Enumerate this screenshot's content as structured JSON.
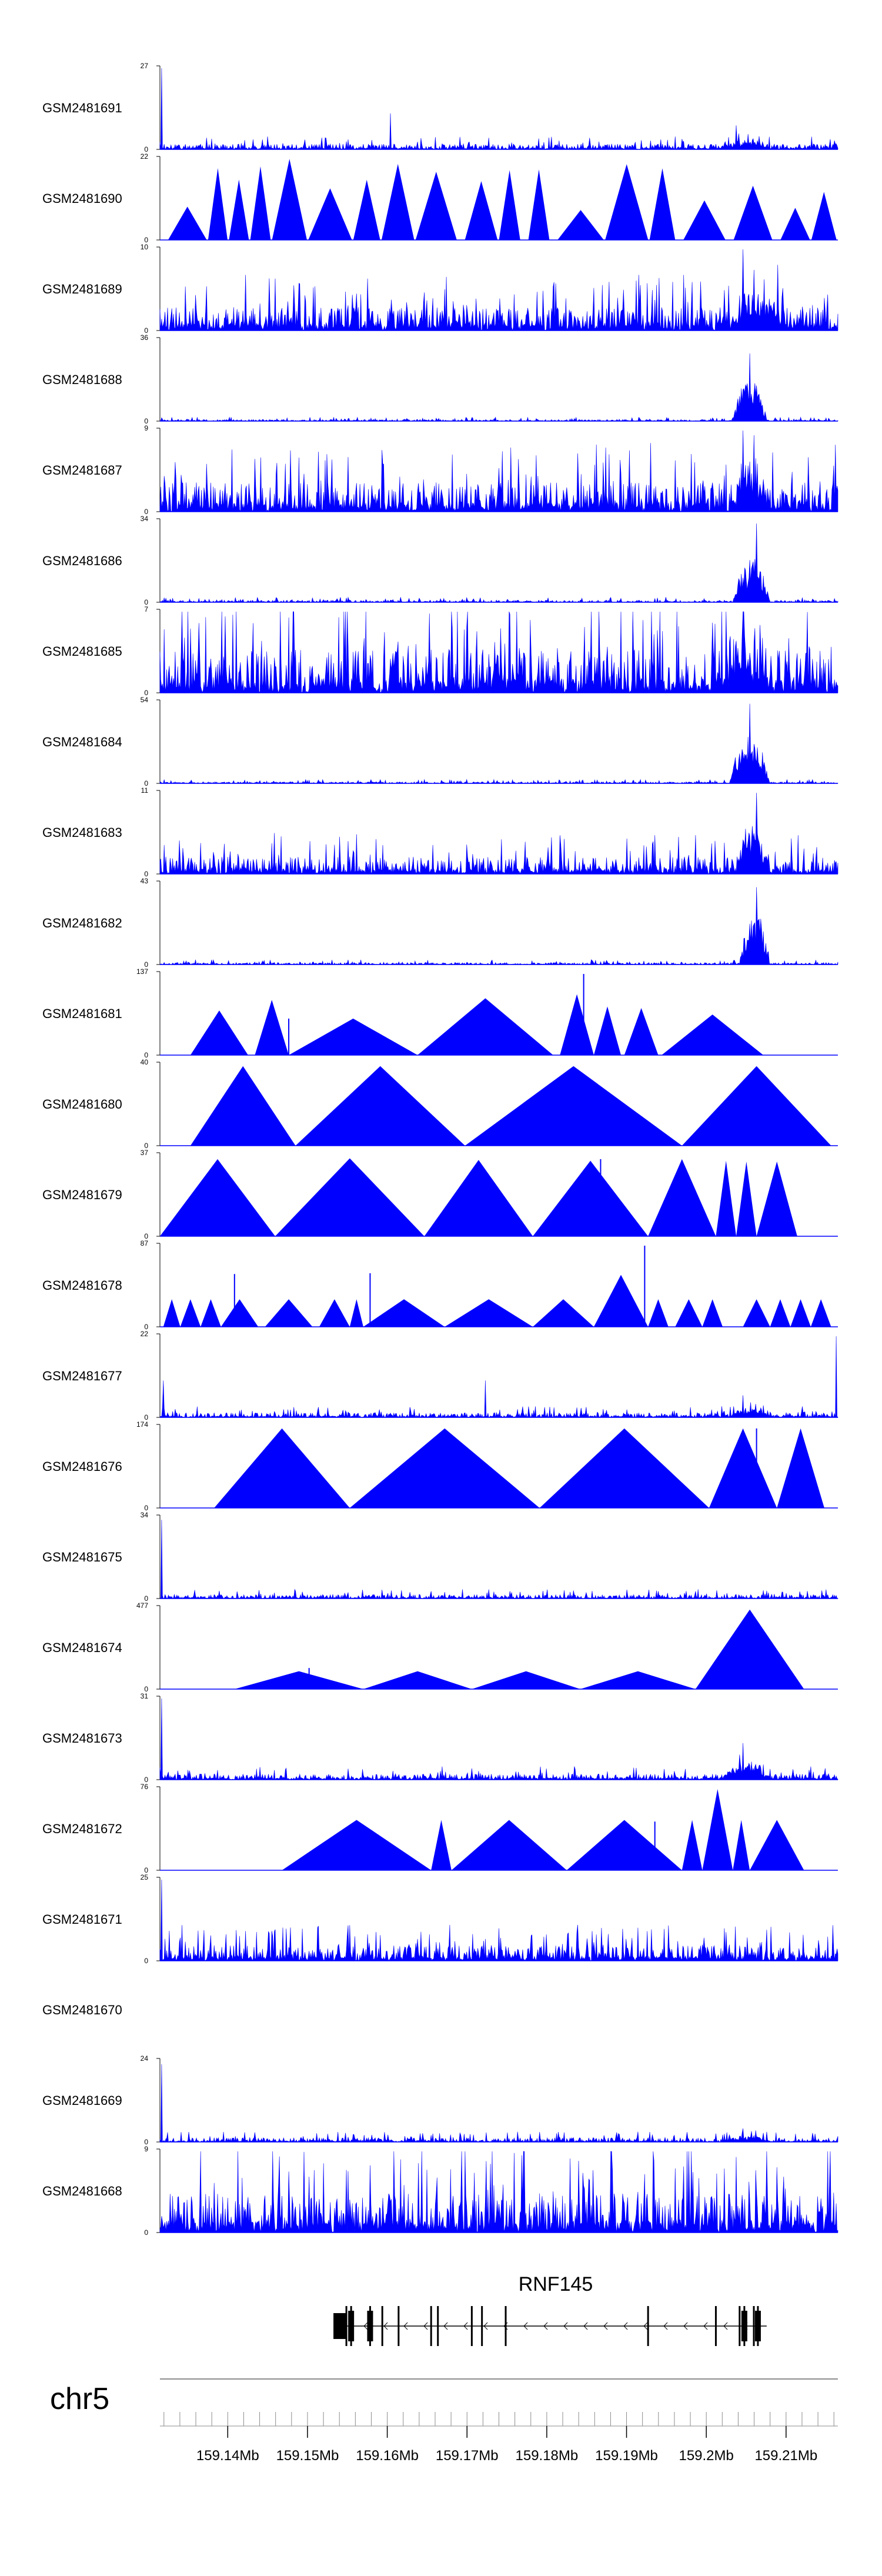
{
  "chart_data": {
    "type": "area",
    "fill_color": "#0000ff",
    "axis_color": "#000000",
    "tracks": [
      {
        "label": "GSM2481691",
        "ymax": "27",
        "ymin": "0",
        "style": "dense",
        "baseline": 1.0,
        "seed": 11,
        "peaks": [
          [
            0.003,
            27
          ],
          [
            0.34,
            12
          ],
          [
            0.85,
            8
          ]
        ],
        "hotspot": [
          0.82,
          0.9,
          1.4
        ]
      },
      {
        "label": "GSM2481690",
        "ymax": "22",
        "ymin": "0",
        "style": "triangles",
        "seed": 12,
        "density": 0.55,
        "max": 22
      },
      {
        "label": "GSM2481689",
        "ymax": "10",
        "ymin": "0",
        "style": "dense",
        "baseline": 1.6,
        "seed": 13,
        "peaks": [
          [
            0.86,
            10
          ]
        ],
        "hotspot": [
          0.84,
          0.92,
          2.4
        ]
      },
      {
        "label": "GSM2481688",
        "ymax": "36",
        "ymin": "0",
        "style": "dense",
        "baseline": 0.4,
        "seed": 14,
        "peaks": [
          [
            0.87,
            30
          ]
        ],
        "hotspot": [
          0.845,
          0.895,
          14
        ]
      },
      {
        "label": "GSM2481687",
        "ymax": "9",
        "ymin": "0",
        "style": "dense",
        "baseline": 1.8,
        "seed": 15,
        "peaks": [
          [
            0.86,
            9
          ]
        ],
        "hotspot": [
          0.84,
          0.9,
          2.6
        ]
      },
      {
        "label": "GSM2481686",
        "ymax": "34",
        "ymin": "0",
        "style": "dense",
        "baseline": 0.5,
        "seed": 16,
        "peaks": [
          [
            0.88,
            33
          ]
        ],
        "hotspot": [
          0.845,
          0.9,
          13
        ]
      },
      {
        "label": "GSM2481685",
        "ymax": "7",
        "ymin": "0",
        "style": "dense",
        "baseline": 2.1,
        "seed": 17,
        "peaks": [
          [
            0.86,
            7
          ]
        ],
        "hotspot": [
          0.82,
          0.9,
          1.6
        ]
      },
      {
        "label": "GSM2481684",
        "ymax": "54",
        "ymin": "0",
        "style": "dense",
        "baseline": 0.6,
        "seed": 18,
        "peaks": [
          [
            0.87,
            53
          ]
        ],
        "hotspot": [
          0.84,
          0.9,
          24
        ]
      },
      {
        "label": "GSM2481683",
        "ymax": "11",
        "ymin": "0",
        "style": "dense",
        "baseline": 1.3,
        "seed": 19,
        "peaks": [
          [
            0.88,
            11
          ]
        ],
        "hotspot": [
          0.85,
          0.9,
          3.8
        ]
      },
      {
        "label": "GSM2481682",
        "ymax": "43",
        "ymin": "0",
        "style": "dense",
        "baseline": 0.6,
        "seed": 20,
        "peaks": [
          [
            0.88,
            41
          ]
        ],
        "hotspot": [
          0.855,
          0.9,
          20
        ]
      },
      {
        "label": "GSM2481681",
        "ymax": "137",
        "ymin": "0",
        "style": "tri_list",
        "tris": [
          [
            0.045,
            0.13,
            0.55
          ],
          [
            0.14,
            0.19,
            0.68
          ],
          [
            0.19,
            0.38,
            0.45
          ],
          [
            0.38,
            0.58,
            0.7
          ],
          [
            0.59,
            0.64,
            0.75
          ],
          [
            0.64,
            0.68,
            0.6
          ],
          [
            0.685,
            0.735,
            0.58
          ],
          [
            0.74,
            0.89,
            0.5
          ]
        ],
        "spikes": [
          [
            0.625,
            1.0
          ],
          [
            0.19,
            0.45
          ]
        ]
      },
      {
        "label": "GSM2481680",
        "ymax": "40",
        "ymin": "0",
        "style": "tri_list",
        "tris": [
          [
            0.045,
            0.2,
            0.98
          ],
          [
            0.2,
            0.45,
            0.98
          ],
          [
            0.45,
            0.77,
            0.98
          ],
          [
            0.77,
            0.99,
            0.98
          ]
        ],
        "spikes": []
      },
      {
        "label": "GSM2481679",
        "ymax": "37",
        "ymin": "0",
        "style": "tri_list",
        "tris": [
          [
            0.0,
            0.17,
            0.95
          ],
          [
            0.17,
            0.39,
            0.96
          ],
          [
            0.39,
            0.55,
            0.94
          ],
          [
            0.55,
            0.72,
            0.93
          ],
          [
            0.72,
            0.82,
            0.95
          ],
          [
            0.82,
            0.85,
            0.93
          ],
          [
            0.85,
            0.88,
            0.92
          ],
          [
            0.88,
            0.94,
            0.92
          ]
        ],
        "spikes": [
          [
            0.65,
            0.95
          ]
        ]
      },
      {
        "label": "GSM2481678",
        "ymax": "87",
        "ymin": "0",
        "style": "tri_list",
        "tris": [
          [
            0.005,
            0.03,
            0.34
          ],
          [
            0.03,
            0.06,
            0.34
          ],
          [
            0.06,
            0.09,
            0.34
          ],
          [
            0.09,
            0.145,
            0.34
          ],
          [
            0.155,
            0.225,
            0.34
          ],
          [
            0.235,
            0.28,
            0.34
          ],
          [
            0.28,
            0.3,
            0.34
          ],
          [
            0.3,
            0.42,
            0.34
          ],
          [
            0.42,
            0.55,
            0.34
          ],
          [
            0.55,
            0.64,
            0.34
          ],
          [
            0.64,
            0.72,
            0.64
          ],
          [
            0.72,
            0.75,
            0.34
          ],
          [
            0.76,
            0.8,
            0.34
          ],
          [
            0.8,
            0.83,
            0.34
          ],
          [
            0.86,
            0.9,
            0.34
          ],
          [
            0.9,
            0.93,
            0.34
          ],
          [
            0.93,
            0.96,
            0.34
          ],
          [
            0.96,
            0.99,
            0.34
          ]
        ],
        "spikes": [
          [
            0.11,
            0.65
          ],
          [
            0.31,
            0.66
          ],
          [
            0.715,
            1.0
          ]
        ]
      },
      {
        "label": "GSM2481677",
        "ymax": "22",
        "ymin": "0",
        "style": "dense",
        "baseline": 0.7,
        "seed": 21,
        "peaks": [
          [
            0.005,
            10
          ],
          [
            0.48,
            10
          ],
          [
            0.998,
            22
          ],
          [
            0.86,
            6
          ]
        ],
        "hotspot": [
          0.84,
          0.9,
          1.5
        ]
      },
      {
        "label": "GSM2481676",
        "ymax": "174",
        "ymin": "0",
        "style": "tri_list",
        "tris": [
          [
            0.08,
            0.28,
            0.98
          ],
          [
            0.28,
            0.56,
            0.98
          ],
          [
            0.56,
            0.81,
            0.98
          ],
          [
            0.81,
            0.91,
            0.98
          ],
          [
            0.91,
            0.98,
            0.98
          ]
        ],
        "spikes": [
          [
            0.88,
            0.98
          ]
        ]
      },
      {
        "label": "GSM2481675",
        "ymax": "34",
        "ymin": "0",
        "style": "dense",
        "baseline": 0.9,
        "seed": 22,
        "peaks": [
          [
            0.003,
            33
          ]
        ],
        "hotspot": [
          0.0,
          0.0,
          0
        ]
      },
      {
        "label": "GSM2481674",
        "ymax": "477",
        "ymin": "0",
        "style": "tri_list",
        "tris": [
          [
            0.11,
            0.3,
            0.22
          ],
          [
            0.3,
            0.46,
            0.22
          ],
          [
            0.46,
            0.62,
            0.22
          ],
          [
            0.62,
            0.79,
            0.22
          ],
          [
            0.79,
            0.95,
            0.98
          ]
        ],
        "spikes": [
          [
            0.22,
            0.26
          ]
        ]
      },
      {
        "label": "GSM2481673",
        "ymax": "31",
        "ymin": "0",
        "style": "dense",
        "baseline": 1.2,
        "seed": 23,
        "peaks": [
          [
            0.003,
            31
          ],
          [
            0.86,
            14
          ]
        ],
        "hotspot": [
          0.83,
          0.9,
          4
        ]
      },
      {
        "label": "GSM2481672",
        "ymax": "76",
        "ymin": "0",
        "style": "tri_list",
        "tris": [
          [
            0.18,
            0.4,
            0.62
          ],
          [
            0.4,
            0.43,
            0.62
          ],
          [
            0.43,
            0.6,
            0.62
          ],
          [
            0.6,
            0.77,
            0.62
          ],
          [
            0.77,
            0.8,
            0.62
          ],
          [
            0.8,
            0.845,
            1.0
          ],
          [
            0.845,
            0.87,
            0.62
          ],
          [
            0.87,
            0.95,
            0.62
          ]
        ],
        "spikes": [
          [
            0.73,
            0.6
          ]
        ]
      },
      {
        "label": "GSM2481671",
        "ymax": "25",
        "ymin": "0",
        "style": "dense",
        "baseline": 2.6,
        "seed": 24,
        "peaks": [
          [
            0.003,
            25
          ]
        ],
        "hotspot": [
          0.0,
          0.0,
          0
        ]
      },
      {
        "label": "GSM2481670",
        "style": "empty"
      },
      {
        "label": "GSM2481669",
        "ymax": "24",
        "ymin": "0",
        "style": "dense",
        "baseline": 0.7,
        "seed": 25,
        "peaks": [
          [
            0.003,
            23
          ],
          [
            0.86,
            4
          ]
        ],
        "hotspot": [
          0.84,
          0.9,
          1
        ]
      },
      {
        "label": "GSM2481668",
        "ymax": "9",
        "ymin": "0",
        "style": "dense",
        "baseline": 2.4,
        "seed": 26,
        "peaks": [
          [
            0.06,
            9
          ],
          [
            0.08,
            5.5
          ]
        ],
        "hotspot": [
          0.0,
          0.0,
          0
        ]
      }
    ],
    "gene": {
      "name": "RNF145",
      "start_frac": 0.275,
      "end_frac": 0.895,
      "exons": [
        0.275,
        0.282,
        0.31,
        0.328,
        0.352,
        0.4,
        0.41,
        0.46,
        0.475,
        0.51,
        0.72,
        0.82,
        0.855,
        0.862,
        0.876,
        0.882
      ],
      "thick_exons": [
        0.282,
        0.31,
        0.862,
        0.882
      ]
    },
    "chromosome": "chr5",
    "axis": {
      "range": [
        159.1315,
        159.2165
      ],
      "major_ticks": [
        "159.14Mb",
        "159.15Mb",
        "159.16Mb",
        "159.17Mb",
        "159.18Mb",
        "159.19Mb",
        "159.2Mb",
        "159.21Mb"
      ],
      "major_values": [
        159.14,
        159.15,
        159.16,
        159.17,
        159.18,
        159.19,
        159.2,
        159.21
      ]
    }
  }
}
